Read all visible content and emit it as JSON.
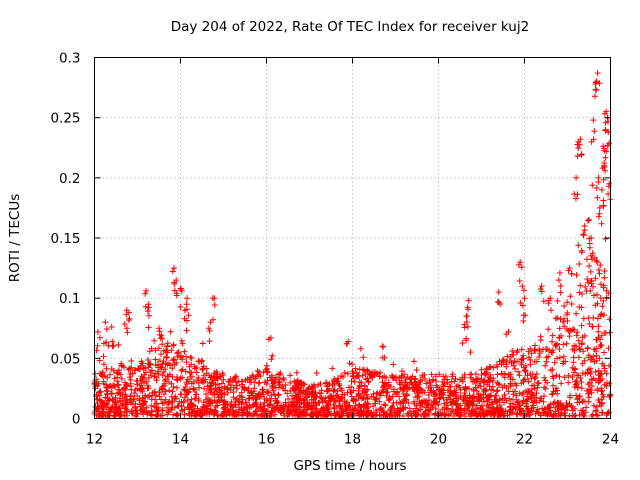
{
  "chart_data": {
    "type": "scatter",
    "title": "Day 204 of 2022, Rate Of TEC Index for receiver kuj2",
    "xlabel": "GPS time / hours",
    "ylabel": "ROTI / TECUs",
    "xlim": [
      12,
      24
    ],
    "ylim": [
      0,
      0.3
    ],
    "x_ticks": [
      12,
      14,
      16,
      18,
      20,
      22,
      24
    ],
    "x_tick_labels": [
      "12",
      "14",
      "16",
      "18",
      "20",
      "22",
      "24"
    ],
    "y_ticks": [
      0,
      0.05,
      0.1,
      0.15,
      0.2,
      0.25,
      0.3
    ],
    "y_tick_labels": [
      "0",
      "0.05",
      "0.1",
      "0.15",
      "0.2",
      "0.25",
      "0.3"
    ],
    "grid": true,
    "marker": "plus",
    "series": [
      {
        "name": "ROTI",
        "color": "#ff0000",
        "envelope": {
          "x": [
            12.0,
            12.5,
            13.0,
            13.3,
            13.6,
            13.8,
            14.0,
            14.2,
            14.5,
            14.8,
            15.0,
            15.5,
            16.0,
            16.5,
            17.0,
            17.5,
            18.0,
            18.5,
            19.0,
            19.5,
            20.0,
            20.5,
            21.0,
            21.5,
            22.0,
            22.5,
            23.0,
            23.3,
            23.5,
            23.8,
            24.0
          ],
          "typical_max": [
            0.035,
            0.045,
            0.04,
            0.06,
            0.07,
            0.08,
            0.065,
            0.05,
            0.045,
            0.04,
            0.035,
            0.035,
            0.04,
            0.035,
            0.025,
            0.03,
            0.04,
            0.04,
            0.035,
            0.035,
            0.035,
            0.035,
            0.04,
            0.05,
            0.06,
            0.07,
            0.1,
            0.15,
            0.14,
            0.13,
            0.1
          ]
        },
        "spikes": [
          {
            "x": 12.08,
            "y": 0.072
          },
          {
            "x": 12.25,
            "y": 0.08
          },
          {
            "x": 12.4,
            "y": 0.076
          },
          {
            "x": 12.75,
            "y": 0.09
          },
          {
            "x": 12.8,
            "y": 0.088
          },
          {
            "x": 13.2,
            "y": 0.106
          },
          {
            "x": 13.25,
            "y": 0.095
          },
          {
            "x": 13.5,
            "y": 0.075
          },
          {
            "x": 13.85,
            "y": 0.125
          },
          {
            "x": 13.9,
            "y": 0.115
          },
          {
            "x": 14.0,
            "y": 0.108
          },
          {
            "x": 14.15,
            "y": 0.1
          },
          {
            "x": 14.1,
            "y": 0.09
          },
          {
            "x": 14.75,
            "y": 0.1
          },
          {
            "x": 14.7,
            "y": 0.08
          },
          {
            "x": 16.1,
            "y": 0.067
          },
          {
            "x": 17.9,
            "y": 0.064
          },
          {
            "x": 18.7,
            "y": 0.06
          },
          {
            "x": 20.6,
            "y": 0.078
          },
          {
            "x": 20.65,
            "y": 0.085
          },
          {
            "x": 20.7,
            "y": 0.098
          },
          {
            "x": 21.4,
            "y": 0.105
          },
          {
            "x": 21.9,
            "y": 0.13
          },
          {
            "x": 21.95,
            "y": 0.11
          },
          {
            "x": 22.0,
            "y": 0.1
          },
          {
            "x": 22.4,
            "y": 0.11
          },
          {
            "x": 22.6,
            "y": 0.1
          },
          {
            "x": 22.8,
            "y": 0.115
          },
          {
            "x": 23.05,
            "y": 0.125
          },
          {
            "x": 23.2,
            "y": 0.2
          },
          {
            "x": 23.25,
            "y": 0.23
          },
          {
            "x": 23.3,
            "y": 0.232
          },
          {
            "x": 23.4,
            "y": 0.16
          },
          {
            "x": 23.5,
            "y": 0.165
          },
          {
            "x": 23.55,
            "y": 0.15
          },
          {
            "x": 23.6,
            "y": 0.248
          },
          {
            "x": 23.65,
            "y": 0.278
          },
          {
            "x": 23.7,
            "y": 0.287
          },
          {
            "x": 23.72,
            "y": 0.2
          },
          {
            "x": 23.8,
            "y": 0.19
          },
          {
            "x": 23.85,
            "y": 0.21
          },
          {
            "x": 23.88,
            "y": 0.24
          },
          {
            "x": 23.9,
            "y": 0.255
          },
          {
            "x": 23.93,
            "y": 0.25
          },
          {
            "x": 23.95,
            "y": 0.238
          },
          {
            "x": 23.97,
            "y": 0.195
          },
          {
            "x": 23.9,
            "y": 0.222
          },
          {
            "x": 23.75,
            "y": 0.175
          }
        ]
      }
    ]
  }
}
